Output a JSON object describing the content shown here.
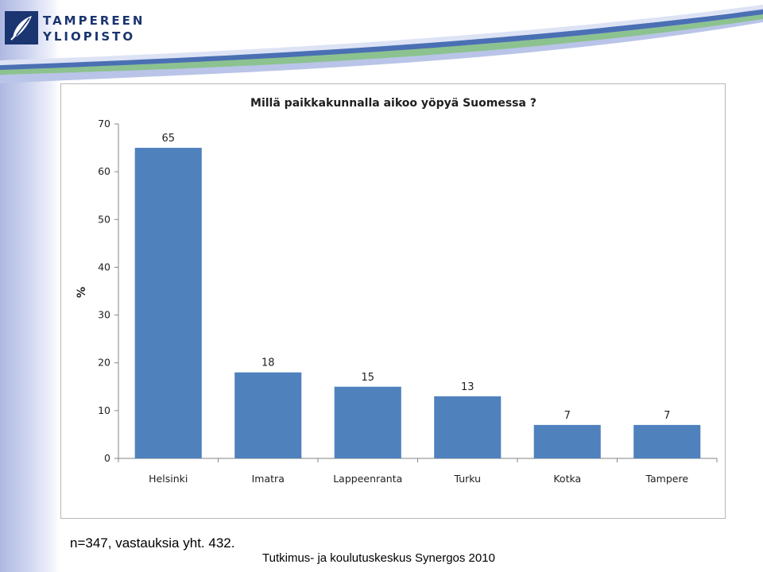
{
  "logo": {
    "line1": "TAMPEREEN",
    "line2": "YLIOPISTO",
    "icon": "university-leaf-logo-icon",
    "color": "#1a3570"
  },
  "colors": {
    "bar": "#4f81bd",
    "wave_blue": "#4a6fb3",
    "wave_green": "#8cc28f",
    "wave_light": "#b9c4e8"
  },
  "chart_data": {
    "type": "bar",
    "title": "Millä paikkakunnalla aikoo yöpyä Suomessa ?",
    "ylabel": "%",
    "xlabel": "",
    "ylim": [
      0,
      70
    ],
    "yticks": [
      0,
      10,
      20,
      30,
      40,
      50,
      60,
      70
    ],
    "categories": [
      "Helsinki",
      "Imatra",
      "Lappeenranta",
      "Turku",
      "Kotka",
      "Tampere"
    ],
    "values": [
      65,
      18,
      15,
      13,
      7,
      7
    ],
    "data_labels": [
      "65",
      "18",
      "15",
      "13",
      "7",
      "7"
    ],
    "grid": false,
    "legend": "none"
  },
  "footer": {
    "note": "n=347, vastauksia yht. 432.",
    "source": "Tutkimus- ja koulutuskeskus Synergos 2010"
  }
}
